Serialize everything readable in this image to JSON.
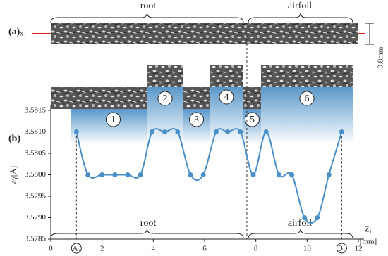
{
  "panel_a": {
    "label": "(a)",
    "root": "root",
    "airfoil": "airfoil",
    "x_marker": "x₁",
    "scale": "0.8mm"
  },
  "panel_b_label": "(b)",
  "regions": [
    "1",
    "2",
    "3",
    "4",
    "5",
    "6"
  ],
  "chart_data": {
    "type": "line",
    "x": [
      1.0,
      1.45,
      2.0,
      2.5,
      3.0,
      3.5,
      3.95,
      4.45,
      4.95,
      5.45,
      5.95,
      6.45,
      6.9,
      7.4,
      7.9,
      8.4,
      8.9,
      9.4,
      9.9,
      10.4,
      10.85,
      11.35
    ],
    "series": [
      {
        "color": "#4a90c8",
        "values": [
          3.581,
          3.58,
          3.58,
          3.58,
          3.58,
          3.58,
          3.581,
          3.581,
          3.581,
          3.58,
          3.58,
          3.581,
          3.581,
          3.581,
          3.58,
          3.581,
          3.58,
          3.58,
          3.579,
          3.579,
          3.58,
          3.581
        ]
      }
    ],
    "xlim": [
      0,
      12
    ],
    "ylim": [
      3.5785,
      3.5815
    ],
    "xticks": [
      0,
      2,
      4,
      6,
      8,
      10,
      12
    ],
    "yticks": [
      3.5785,
      {
        "value": 3.579,
        "label": "3.5790"
      },
      3.5795,
      {
        "value": 3.58,
        "label": "3.5800"
      },
      3.5805,
      {
        "value": 3.581,
        "label": "3.5810"
      },
      3.5815
    ],
    "x_label": "Z₁",
    "x_unit": "[mm]",
    "y_label": "aγ[Å]",
    "annotations": {
      "root": "root",
      "airfoil": "airfoil",
      "start": "A₁",
      "end": "B₁"
    },
    "boundary": 7.65
  }
}
